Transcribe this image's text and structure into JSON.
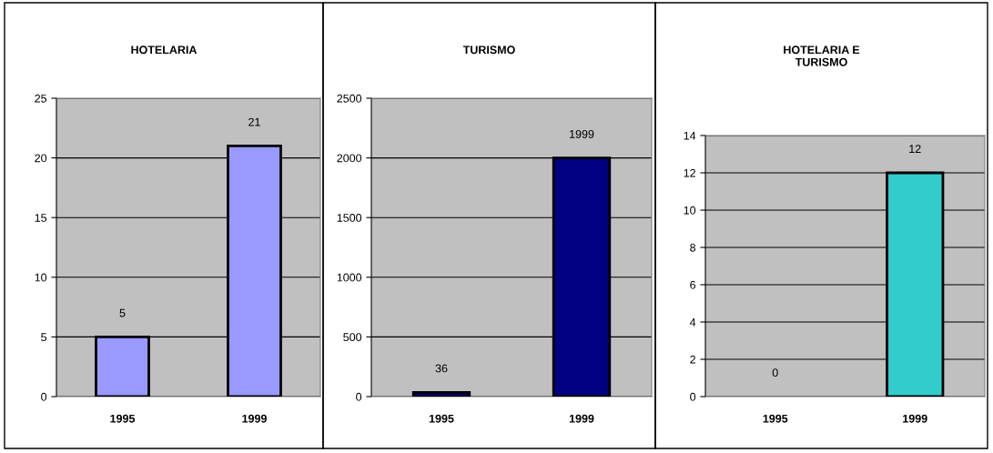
{
  "chart_data": [
    {
      "type": "bar",
      "title": "HOTELARIA",
      "categories": [
        "1995",
        "1999"
      ],
      "values": [
        5,
        21
      ],
      "color": "#9999ff",
      "ylim": [
        0,
        25
      ],
      "yticks": [
        0,
        5,
        10,
        15,
        20,
        25
      ],
      "grid": "y",
      "data_labels": true
    },
    {
      "type": "bar",
      "title": "TURISMO",
      "categories": [
        "1995",
        "1999"
      ],
      "values": [
        36,
        1999
      ],
      "color": "#000080",
      "ylim": [
        0,
        2500
      ],
      "yticks": [
        0,
        500,
        1000,
        1500,
        2000,
        2500
      ],
      "grid": "y",
      "data_labels": true
    },
    {
      "type": "bar",
      "title": "HOTELARIA E\nTURISMO",
      "categories": [
        "1995",
        "1999"
      ],
      "values": [
        0,
        12
      ],
      "color": "#33cccc",
      "ylim": [
        0,
        14
      ],
      "yticks": [
        0,
        2,
        4,
        6,
        8,
        10,
        12,
        14
      ],
      "grid": "y",
      "data_labels": true
    }
  ]
}
